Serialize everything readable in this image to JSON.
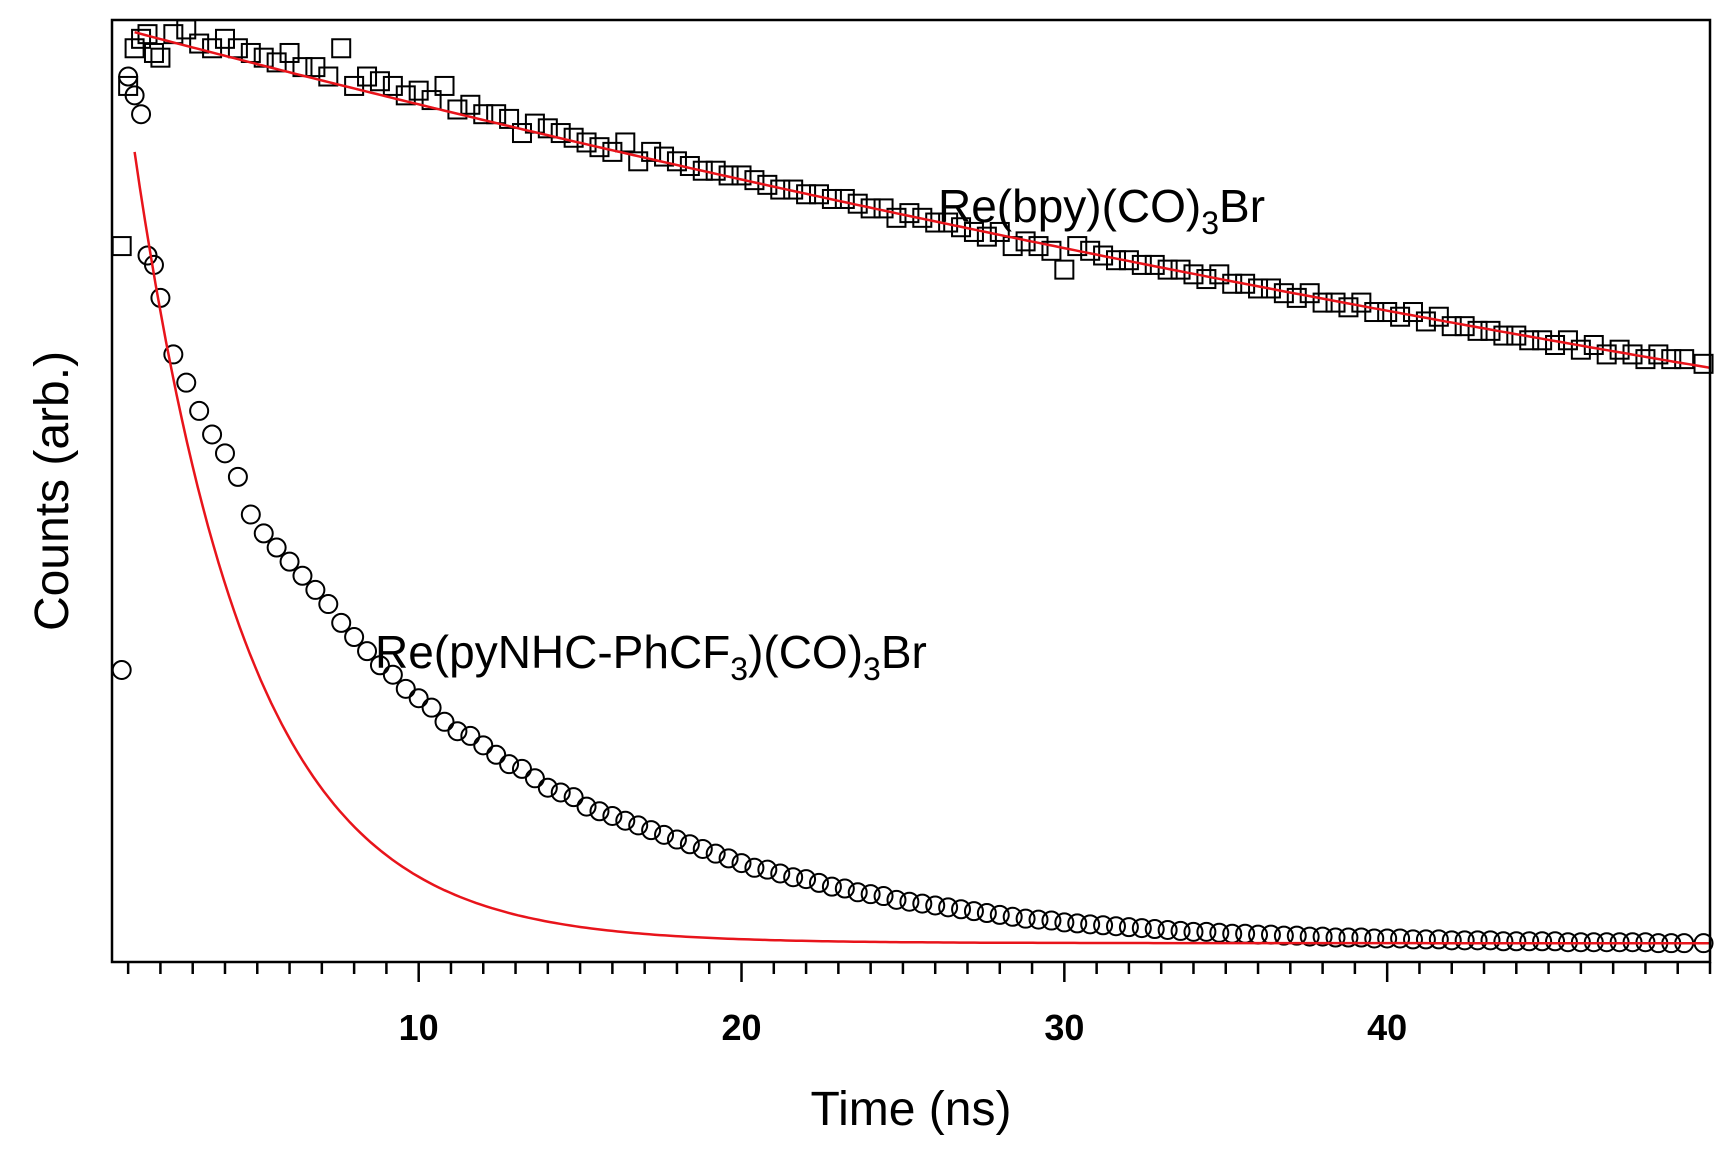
{
  "chart_data": {
    "type": "scatter",
    "xlabel": "Time (ns)",
    "ylabel": "Counts (arb.)",
    "xlim": [
      0.5,
      50
    ],
    "ylim": [
      0,
      1.0
    ],
    "x_ticks": [
      10,
      20,
      30,
      40
    ],
    "x_minor_step": 1,
    "y_ticks_visible": false,
    "grid": false,
    "colors": {
      "data_marker": "#000000",
      "fit_line": "#e8141b"
    },
    "series": [
      {
        "name_parts": [
          "Re(bpy)(CO)",
          "3",
          "Br"
        ],
        "marker": "square",
        "fit": {
          "model": "exponential",
          "amplitude": 0.987,
          "tau_ns": 109,
          "t0": 1.2,
          "x_start": 1.2,
          "x_end": 50
        },
        "points": [
          [
            0.8,
            0.76
          ],
          [
            1.0,
            0.93
          ],
          [
            1.2,
            0.97
          ],
          [
            1.4,
            0.98
          ],
          [
            1.6,
            0.985
          ],
          [
            1.8,
            0.965
          ],
          [
            2.0,
            0.96
          ],
          [
            2.4,
            0.985
          ],
          [
            2.8,
            0.99
          ],
          [
            3.2,
            0.975
          ],
          [
            3.6,
            0.97
          ],
          [
            4.0,
            0.98
          ],
          [
            4.4,
            0.97
          ],
          [
            4.8,
            0.965
          ],
          [
            5.2,
            0.96
          ],
          [
            5.6,
            0.955
          ],
          [
            6.0,
            0.965
          ],
          [
            6.4,
            0.95
          ],
          [
            6.8,
            0.95
          ],
          [
            7.2,
            0.94
          ],
          [
            7.6,
            0.97
          ],
          [
            8.0,
            0.93
          ],
          [
            8.4,
            0.94
          ],
          [
            8.8,
            0.935
          ],
          [
            9.2,
            0.93
          ],
          [
            9.6,
            0.92
          ],
          [
            10.0,
            0.925
          ],
          [
            10.4,
            0.915
          ],
          [
            10.8,
            0.93
          ],
          [
            11.2,
            0.905
          ],
          [
            11.6,
            0.91
          ],
          [
            12.0,
            0.9
          ],
          [
            12.4,
            0.9
          ],
          [
            12.8,
            0.895
          ],
          [
            13.2,
            0.88
          ],
          [
            13.6,
            0.89
          ],
          [
            14.0,
            0.885
          ],
          [
            14.4,
            0.88
          ],
          [
            14.8,
            0.875
          ],
          [
            15.2,
            0.87
          ],
          [
            15.6,
            0.865
          ],
          [
            16.0,
            0.86
          ],
          [
            16.4,
            0.87
          ],
          [
            16.8,
            0.85
          ],
          [
            17.2,
            0.86
          ],
          [
            17.6,
            0.855
          ],
          [
            18.0,
            0.85
          ],
          [
            18.4,
            0.845
          ],
          [
            18.8,
            0.84
          ],
          [
            19.2,
            0.84
          ],
          [
            19.6,
            0.835
          ],
          [
            20.0,
            0.835
          ],
          [
            20.4,
            0.83
          ],
          [
            20.8,
            0.825
          ],
          [
            21.2,
            0.82
          ],
          [
            21.6,
            0.82
          ],
          [
            22.0,
            0.815
          ],
          [
            22.4,
            0.815
          ],
          [
            22.8,
            0.81
          ],
          [
            23.2,
            0.81
          ],
          [
            23.6,
            0.805
          ],
          [
            24.0,
            0.8
          ],
          [
            24.4,
            0.8
          ],
          [
            24.8,
            0.79
          ],
          [
            25.2,
            0.795
          ],
          [
            25.6,
            0.79
          ],
          [
            26.0,
            0.785
          ],
          [
            26.4,
            0.785
          ],
          [
            26.8,
            0.78
          ],
          [
            27.2,
            0.775
          ],
          [
            27.6,
            0.77
          ],
          [
            28.0,
            0.775
          ],
          [
            28.4,
            0.76
          ],
          [
            28.8,
            0.765
          ],
          [
            29.2,
            0.76
          ],
          [
            29.6,
            0.755
          ],
          [
            30.0,
            0.735
          ],
          [
            30.4,
            0.76
          ],
          [
            30.8,
            0.755
          ],
          [
            31.2,
            0.75
          ],
          [
            31.6,
            0.745
          ],
          [
            32.0,
            0.745
          ],
          [
            32.4,
            0.74
          ],
          [
            32.8,
            0.74
          ],
          [
            33.2,
            0.735
          ],
          [
            33.6,
            0.735
          ],
          [
            34.0,
            0.73
          ],
          [
            34.4,
            0.725
          ],
          [
            34.8,
            0.73
          ],
          [
            35.2,
            0.72
          ],
          [
            35.6,
            0.72
          ],
          [
            36.0,
            0.715
          ],
          [
            36.4,
            0.715
          ],
          [
            36.8,
            0.71
          ],
          [
            37.2,
            0.705
          ],
          [
            37.6,
            0.71
          ],
          [
            38.0,
            0.7
          ],
          [
            38.4,
            0.7
          ],
          [
            38.8,
            0.695
          ],
          [
            39.2,
            0.7
          ],
          [
            39.6,
            0.69
          ],
          [
            40.0,
            0.69
          ],
          [
            40.4,
            0.685
          ],
          [
            40.8,
            0.69
          ],
          [
            41.2,
            0.68
          ],
          [
            41.6,
            0.685
          ],
          [
            42.0,
            0.675
          ],
          [
            42.4,
            0.675
          ],
          [
            42.8,
            0.67
          ],
          [
            43.2,
            0.67
          ],
          [
            43.6,
            0.665
          ],
          [
            44.0,
            0.665
          ],
          [
            44.4,
            0.66
          ],
          [
            44.8,
            0.66
          ],
          [
            45.2,
            0.655
          ],
          [
            45.6,
            0.66
          ],
          [
            46.0,
            0.65
          ],
          [
            46.4,
            0.655
          ],
          [
            46.8,
            0.645
          ],
          [
            47.2,
            0.65
          ],
          [
            47.6,
            0.645
          ],
          [
            48.0,
            0.64
          ],
          [
            48.4,
            0.645
          ],
          [
            48.8,
            0.64
          ],
          [
            49.2,
            0.64
          ],
          [
            49.8,
            0.635
          ]
        ]
      },
      {
        "name_parts": [
          "Re(pyNHC-PhCF",
          "3",
          ")(CO)",
          "3",
          "Br"
        ],
        "marker": "circle",
        "fit": {
          "model": "exponential",
          "offset": 0.02,
          "amplitude": 0.84,
          "tau_ns": 3.55,
          "t0": 1.2,
          "x_start": 1.2,
          "x_end": 50
        },
        "points": [
          [
            0.8,
            0.31
          ],
          [
            1.0,
            0.94
          ],
          [
            1.2,
            0.92
          ],
          [
            1.4,
            0.9
          ],
          [
            1.6,
            0.75
          ],
          [
            1.8,
            0.74
          ],
          [
            2.0,
            0.705
          ],
          [
            2.4,
            0.645
          ],
          [
            2.8,
            0.615
          ],
          [
            3.2,
            0.585
          ],
          [
            3.6,
            0.56
          ],
          [
            4.0,
            0.54
          ],
          [
            4.4,
            0.515
          ],
          [
            4.8,
            0.475
          ],
          [
            5.2,
            0.455
          ],
          [
            5.6,
            0.44
          ],
          [
            6.0,
            0.425
          ],
          [
            6.4,
            0.41
          ],
          [
            6.8,
            0.395
          ],
          [
            7.2,
            0.38
          ],
          [
            7.6,
            0.36
          ],
          [
            8.0,
            0.345
          ],
          [
            8.4,
            0.33
          ],
          [
            8.8,
            0.315
          ],
          [
            9.2,
            0.305
          ],
          [
            9.6,
            0.29
          ],
          [
            10.0,
            0.28
          ],
          [
            10.4,
            0.27
          ],
          [
            10.8,
            0.255
          ],
          [
            11.2,
            0.245
          ],
          [
            11.6,
            0.24
          ],
          [
            12.0,
            0.23
          ],
          [
            12.4,
            0.22
          ],
          [
            12.8,
            0.21
          ],
          [
            13.2,
            0.205
          ],
          [
            13.6,
            0.195
          ],
          [
            14.0,
            0.185
          ],
          [
            14.4,
            0.18
          ],
          [
            14.8,
            0.175
          ],
          [
            15.2,
            0.165
          ],
          [
            15.6,
            0.16
          ],
          [
            16.0,
            0.155
          ],
          [
            16.4,
            0.15
          ],
          [
            16.8,
            0.145
          ],
          [
            17.2,
            0.14
          ],
          [
            17.6,
            0.135
          ],
          [
            18.0,
            0.13
          ],
          [
            18.4,
            0.125
          ],
          [
            18.8,
            0.12
          ],
          [
            19.2,
            0.115
          ],
          [
            19.6,
            0.11
          ],
          [
            20.0,
            0.105
          ],
          [
            20.4,
            0.1
          ],
          [
            20.8,
            0.098
          ],
          [
            21.2,
            0.094
          ],
          [
            21.6,
            0.09
          ],
          [
            22.0,
            0.088
          ],
          [
            22.4,
            0.084
          ],
          [
            22.8,
            0.08
          ],
          [
            23.2,
            0.078
          ],
          [
            23.6,
            0.074
          ],
          [
            24.0,
            0.072
          ],
          [
            24.4,
            0.07
          ],
          [
            24.8,
            0.066
          ],
          [
            25.2,
            0.064
          ],
          [
            25.6,
            0.062
          ],
          [
            26.0,
            0.06
          ],
          [
            26.4,
            0.058
          ],
          [
            26.8,
            0.056
          ],
          [
            27.2,
            0.054
          ],
          [
            27.6,
            0.052
          ],
          [
            28.0,
            0.05
          ],
          [
            28.4,
            0.048
          ],
          [
            28.8,
            0.046
          ],
          [
            29.2,
            0.045
          ],
          [
            29.6,
            0.044
          ],
          [
            30.0,
            0.042
          ],
          [
            30.4,
            0.041
          ],
          [
            30.8,
            0.04
          ],
          [
            31.2,
            0.039
          ],
          [
            31.6,
            0.038
          ],
          [
            32.0,
            0.037
          ],
          [
            32.4,
            0.036
          ],
          [
            32.8,
            0.035
          ],
          [
            33.2,
            0.034
          ],
          [
            33.6,
            0.033
          ],
          [
            34.0,
            0.032
          ],
          [
            34.4,
            0.032
          ],
          [
            34.8,
            0.031
          ],
          [
            35.2,
            0.03
          ],
          [
            35.6,
            0.03
          ],
          [
            36.0,
            0.029
          ],
          [
            36.4,
            0.029
          ],
          [
            36.8,
            0.028
          ],
          [
            37.2,
            0.028
          ],
          [
            37.6,
            0.027
          ],
          [
            38.0,
            0.027
          ],
          [
            38.4,
            0.026
          ],
          [
            38.8,
            0.026
          ],
          [
            39.2,
            0.026
          ],
          [
            39.6,
            0.025
          ],
          [
            40.0,
            0.025
          ],
          [
            40.4,
            0.025
          ],
          [
            40.8,
            0.024
          ],
          [
            41.2,
            0.024
          ],
          [
            41.6,
            0.024
          ],
          [
            42.0,
            0.023
          ],
          [
            42.4,
            0.023
          ],
          [
            42.8,
            0.023
          ],
          [
            43.2,
            0.023
          ],
          [
            43.6,
            0.022
          ],
          [
            44.0,
            0.022
          ],
          [
            44.4,
            0.022
          ],
          [
            44.8,
            0.022
          ],
          [
            45.2,
            0.022
          ],
          [
            45.6,
            0.021
          ],
          [
            46.0,
            0.021
          ],
          [
            46.4,
            0.021
          ],
          [
            46.8,
            0.021
          ],
          [
            47.2,
            0.021
          ],
          [
            47.6,
            0.021
          ],
          [
            48.0,
            0.021
          ],
          [
            48.4,
            0.02
          ],
          [
            48.8,
            0.02
          ],
          [
            49.2,
            0.02
          ],
          [
            49.8,
            0.02
          ]
        ]
      }
    ]
  }
}
